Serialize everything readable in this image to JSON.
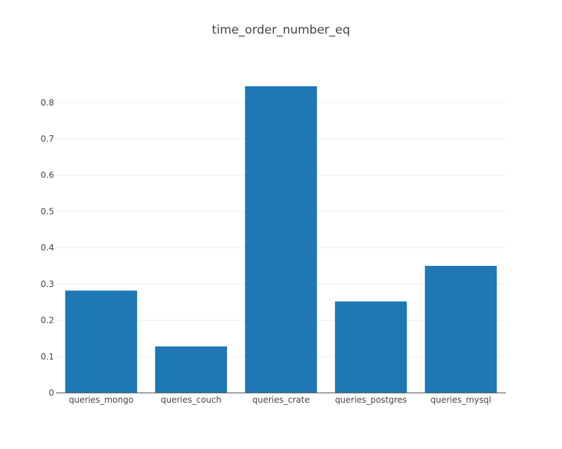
{
  "chart_data": {
    "type": "bar",
    "title": "time_order_number_eq",
    "xlabel": "",
    "ylabel": "",
    "categories": [
      "queries_mongo",
      "queries_couch",
      "queries_crate",
      "queries_postgres",
      "queries_mysql"
    ],
    "values": [
      0.282,
      0.128,
      0.845,
      0.252,
      0.35
    ],
    "ylim": [
      0,
      0.845
    ],
    "yticks": [
      0,
      0.1,
      0.2,
      0.3,
      0.4,
      0.5,
      0.6,
      0.7,
      0.8
    ],
    "ytick_labels": [
      "0",
      "0.1",
      "0.2",
      "0.3",
      "0.4",
      "0.5",
      "0.6",
      "0.7",
      "0.8"
    ],
    "grid": true,
    "legend": "none",
    "bar_color": "#1f77b4",
    "grid_color": "#eeeeee",
    "axis_color": "#444444"
  }
}
